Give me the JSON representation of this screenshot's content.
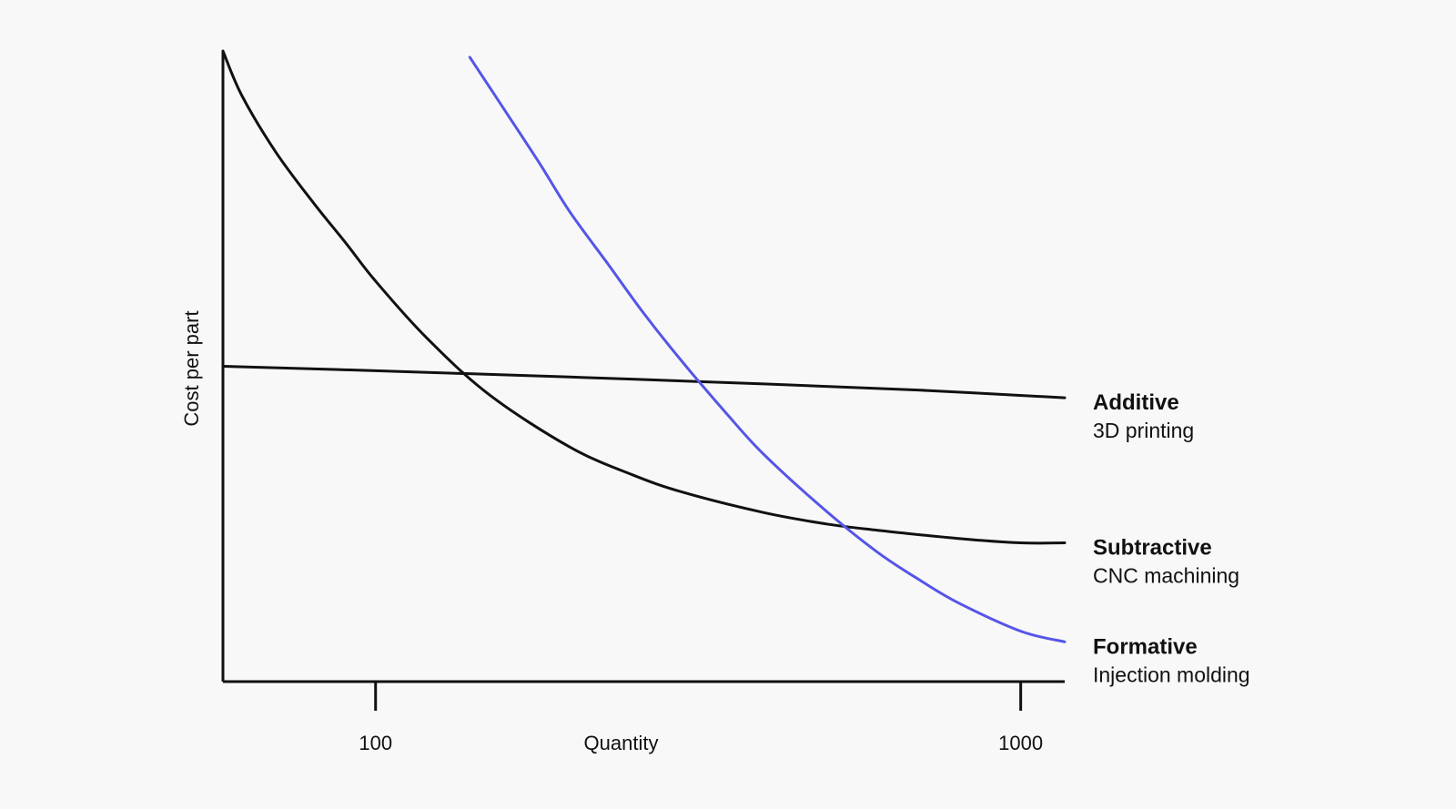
{
  "chart_data": {
    "type": "line",
    "title": "",
    "xlabel": "Quantity",
    "ylabel": "Cost per part",
    "x_scale": "log",
    "xlim": [
      58,
      1170
    ],
    "ylim": [
      0,
      10
    ],
    "x_ticks": [
      {
        "value": 100,
        "label": "100"
      },
      {
        "value": 1000,
        "label": "1000"
      }
    ],
    "grid": false,
    "legend": "right",
    "colors": {
      "axis": "#111111",
      "additive": "#111111",
      "subtractive": "#111111",
      "formative": "#5555e8",
      "background": "#f8f8f8"
    },
    "series": [
      {
        "name": "Additive",
        "subtitle": "3D printing",
        "color": "#111111",
        "x": [
          58,
          100,
          200,
          400,
          700,
          1170
        ],
        "y": [
          5.0,
          4.93,
          4.83,
          4.72,
          4.62,
          4.5
        ]
      },
      {
        "name": "Subtractive",
        "subtitle": "CNC machining",
        "color": "#111111",
        "x": [
          58,
          62,
          70,
          80,
          90,
          100,
          120,
          150,
          200,
          250,
          300,
          400,
          500,
          600,
          800,
          1000,
          1170
        ],
        "y": [
          10.0,
          9.3,
          8.4,
          7.6,
          6.95,
          6.35,
          5.45,
          4.55,
          3.72,
          3.28,
          3.0,
          2.68,
          2.5,
          2.4,
          2.27,
          2.2,
          2.2
        ]
      },
      {
        "name": "Formative",
        "subtitle": "Injection molding",
        "color": "#5555e8",
        "x": [
          140,
          160,
          180,
          200,
          230,
          260,
          300,
          350,
          400,
          500,
          600,
          700,
          800,
          1000,
          1170
        ],
        "y": [
          9.9,
          9.0,
          8.2,
          7.45,
          6.6,
          5.85,
          5.05,
          4.25,
          3.6,
          2.7,
          2.05,
          1.6,
          1.25,
          0.8,
          0.63
        ]
      }
    ]
  }
}
